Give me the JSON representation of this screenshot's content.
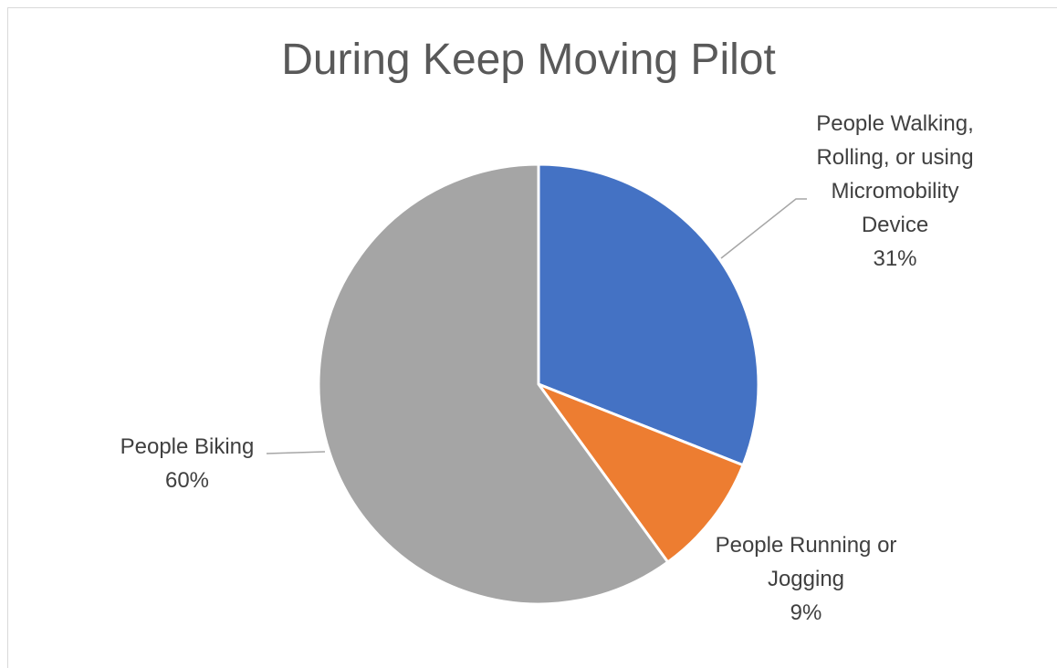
{
  "chart_data": {
    "type": "pie",
    "title": "During Keep Moving Pilot",
    "categories": [
      "People Walking, Rolling, or using Micromobility Device",
      "People Running or Jogging",
      "People Biking"
    ],
    "values": [
      31,
      9,
      60
    ],
    "value_labels": [
      "31%",
      "9%",
      "60%"
    ],
    "colors": [
      "#4472c4",
      "#ed7d31",
      "#a5a5a5"
    ]
  }
}
